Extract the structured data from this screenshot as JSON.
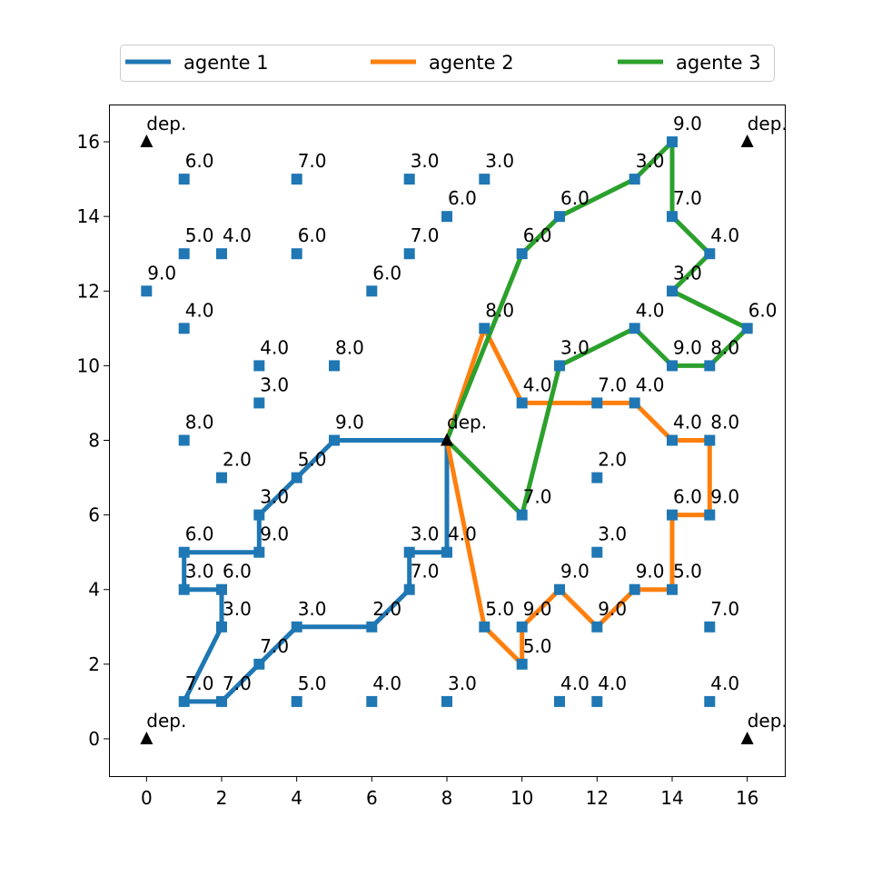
{
  "chart_data": {
    "type": "scatter",
    "title": "",
    "xlabel": "",
    "ylabel": "",
    "xlim": [
      -1,
      17
    ],
    "ylim": [
      -1,
      17
    ],
    "xticks": [
      0,
      2,
      4,
      6,
      8,
      10,
      12,
      14,
      16
    ],
    "yticks": [
      0,
      2,
      4,
      6,
      8,
      10,
      12,
      14,
      16
    ],
    "grid": false,
    "legend_position": "top",
    "marker_color": "#1f77b4",
    "depot_color": "#000000",
    "depot_label": "dep.",
    "depots": [
      {
        "x": 0,
        "y": 16
      },
      {
        "x": 16,
        "y": 16
      },
      {
        "x": 8,
        "y": 8
      },
      {
        "x": 0,
        "y": 0
      },
      {
        "x": 16,
        "y": 0
      }
    ],
    "nodes": [
      {
        "x": 1,
        "y": 15,
        "label": "6.0"
      },
      {
        "x": 4,
        "y": 15,
        "label": "7.0"
      },
      {
        "x": 7,
        "y": 15,
        "label": "3.0"
      },
      {
        "x": 9,
        "y": 15,
        "label": "3.0"
      },
      {
        "x": 8,
        "y": 14,
        "label": "6.0"
      },
      {
        "x": 1,
        "y": 13,
        "label": "5.0"
      },
      {
        "x": 2,
        "y": 13,
        "label": "4.0"
      },
      {
        "x": 4,
        "y": 13,
        "label": "6.0"
      },
      {
        "x": 7,
        "y": 13,
        "label": "7.0"
      },
      {
        "x": 0,
        "y": 12,
        "label": "9.0"
      },
      {
        "x": 6,
        "y": 12,
        "label": "6.0"
      },
      {
        "x": 1,
        "y": 11,
        "label": "4.0"
      },
      {
        "x": 3,
        "y": 10,
        "label": "4.0"
      },
      {
        "x": 5,
        "y": 10,
        "label": "8.0"
      },
      {
        "x": 3,
        "y": 9,
        "label": "3.0"
      },
      {
        "x": 1,
        "y": 8,
        "label": "8.0"
      },
      {
        "x": 2,
        "y": 7,
        "label": "2.0"
      },
      {
        "x": 4,
        "y": 7,
        "label": "5.0"
      },
      {
        "x": 5,
        "y": 8,
        "label": "9.0"
      },
      {
        "x": 3,
        "y": 6,
        "label": "3.0"
      },
      {
        "x": 1,
        "y": 5,
        "label": "6.0"
      },
      {
        "x": 3,
        "y": 5,
        "label": "9.0"
      },
      {
        "x": 1,
        "y": 4,
        "label": "3.0"
      },
      {
        "x": 2,
        "y": 4,
        "label": "6.0"
      },
      {
        "x": 2,
        "y": 3,
        "label": "3.0"
      },
      {
        "x": 3,
        "y": 2,
        "label": "7.0"
      },
      {
        "x": 1,
        "y": 1,
        "label": "7.0"
      },
      {
        "x": 2,
        "y": 1,
        "label": "7.0"
      },
      {
        "x": 4,
        "y": 3,
        "label": "3.0"
      },
      {
        "x": 6,
        "y": 3,
        "label": "2.0"
      },
      {
        "x": 7,
        "y": 5,
        "label": "3.0"
      },
      {
        "x": 8,
        "y": 5,
        "label": "4.0"
      },
      {
        "x": 7,
        "y": 4,
        "label": "7.0"
      },
      {
        "x": 4,
        "y": 1,
        "label": "5.0"
      },
      {
        "x": 6,
        "y": 1,
        "label": "4.0"
      },
      {
        "x": 8,
        "y": 1,
        "label": "3.0"
      },
      {
        "x": 11,
        "y": 1,
        "label": "4.0"
      },
      {
        "x": 12,
        "y": 1,
        "label": "4.0"
      },
      {
        "x": 15,
        "y": 1,
        "label": "4.0"
      },
      {
        "x": 15,
        "y": 3,
        "label": "7.0"
      },
      {
        "x": 9,
        "y": 3,
        "label": "5.0"
      },
      {
        "x": 10,
        "y": 3,
        "label": "9.0"
      },
      {
        "x": 10,
        "y": 2,
        "label": "5.0"
      },
      {
        "x": 11,
        "y": 4,
        "label": "9.0"
      },
      {
        "x": 12,
        "y": 3,
        "label": "9.0"
      },
      {
        "x": 13,
        "y": 4,
        "label": "9.0"
      },
      {
        "x": 14,
        "y": 4,
        "label": "5.0"
      },
      {
        "x": 12,
        "y": 5,
        "label": "3.0"
      },
      {
        "x": 14,
        "y": 6,
        "label": "6.0"
      },
      {
        "x": 15,
        "y": 6,
        "label": "9.0"
      },
      {
        "x": 12,
        "y": 7,
        "label": "2.0"
      },
      {
        "x": 10,
        "y": 6,
        "label": "7.0"
      },
      {
        "x": 14,
        "y": 8,
        "label": "4.0"
      },
      {
        "x": 15,
        "y": 8,
        "label": "8.0"
      },
      {
        "x": 10,
        "y": 9,
        "label": "4.0"
      },
      {
        "x": 12,
        "y": 9,
        "label": "7.0"
      },
      {
        "x": 13,
        "y": 9,
        "label": "4.0"
      },
      {
        "x": 11,
        "y": 10,
        "label": "3.0"
      },
      {
        "x": 13,
        "y": 11,
        "label": "4.0"
      },
      {
        "x": 14,
        "y": 10,
        "label": "9.0"
      },
      {
        "x": 15,
        "y": 10,
        "label": "8.0"
      },
      {
        "x": 16,
        "y": 11,
        "label": "6.0"
      },
      {
        "x": 9,
        "y": 11,
        "label": "8.0"
      },
      {
        "x": 14,
        "y": 12,
        "label": "3.0"
      },
      {
        "x": 15,
        "y": 13,
        "label": "4.0"
      },
      {
        "x": 14,
        "y": 14,
        "label": "7.0"
      },
      {
        "x": 14,
        "y": 16,
        "label": "9.0"
      },
      {
        "x": 13,
        "y": 15,
        "label": "3.0"
      },
      {
        "x": 11,
        "y": 14,
        "label": "6.0"
      },
      {
        "x": 10,
        "y": 13,
        "label": "6.0"
      }
    ],
    "series": [
      {
        "name": "agente 1",
        "color": "#1f77b4",
        "path": [
          [
            8,
            8
          ],
          [
            5,
            8
          ],
          [
            4,
            7
          ],
          [
            3,
            6
          ],
          [
            3,
            5
          ],
          [
            1,
            5
          ],
          [
            1,
            4
          ],
          [
            2,
            4
          ],
          [
            2,
            3
          ],
          [
            1,
            1
          ],
          [
            2,
            1
          ],
          [
            3,
            2
          ],
          [
            4,
            3
          ],
          [
            6,
            3
          ],
          [
            7,
            4
          ],
          [
            7,
            5
          ],
          [
            8,
            5
          ],
          [
            8,
            8
          ]
        ]
      },
      {
        "name": "agente 2",
        "color": "#ff7f0e",
        "path": [
          [
            8,
            8
          ],
          [
            9,
            11
          ],
          [
            10,
            9
          ],
          [
            12,
            9
          ],
          [
            13,
            9
          ],
          [
            14,
            8
          ],
          [
            15,
            8
          ],
          [
            15,
            6
          ],
          [
            14,
            6
          ],
          [
            14,
            4
          ],
          [
            13,
            4
          ],
          [
            12,
            3
          ],
          [
            11,
            4
          ],
          [
            10,
            3
          ],
          [
            10,
            2
          ],
          [
            9,
            3
          ],
          [
            8,
            8
          ]
        ]
      },
      {
        "name": "agente 3",
        "color": "#2ca02c",
        "path": [
          [
            8,
            8
          ],
          [
            10,
            13
          ],
          [
            11,
            14
          ],
          [
            13,
            15
          ],
          [
            14,
            16
          ],
          [
            14,
            14
          ],
          [
            15,
            13
          ],
          [
            14,
            12
          ],
          [
            16,
            11
          ],
          [
            15,
            10
          ],
          [
            14,
            10
          ],
          [
            13,
            11
          ],
          [
            11,
            10
          ],
          [
            10,
            6
          ],
          [
            8,
            8
          ]
        ]
      }
    ]
  }
}
